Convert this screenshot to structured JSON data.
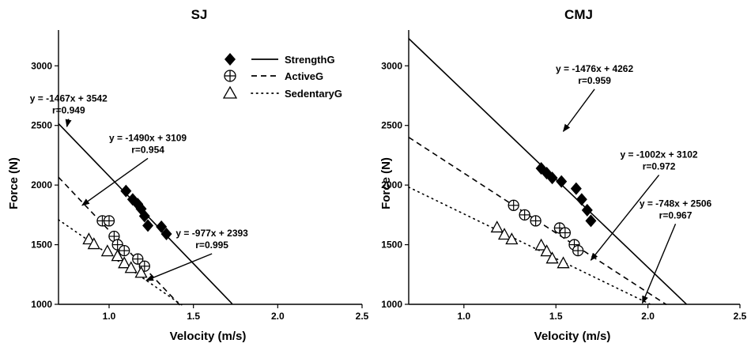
{
  "chart_data": [
    {
      "type": "scatter",
      "title": "SJ",
      "xlabel": "Velocity (m/s)",
      "ylabel": "Force (N)",
      "xlim": [
        0.7,
        2.5
      ],
      "ylim": [
        1000,
        3300
      ],
      "xticks": [
        1.0,
        1.5,
        2.0,
        2.5
      ],
      "xtick_labels": [
        "1.0",
        "1.5",
        "2.0",
        "2.5"
      ],
      "yticks": [
        1000,
        1500,
        2000,
        2500,
        3000
      ],
      "ytick_labels": [
        "1000",
        "1500",
        "2000",
        "2500",
        "3000"
      ],
      "legend_position": "top-right",
      "series": [
        {
          "name": "StrengthG",
          "marker": "diamond",
          "line": "solid",
          "points": [
            [
              1.1,
              1950
            ],
            [
              1.14,
              1880
            ],
            [
              1.17,
              1840
            ],
            [
              1.19,
              1800
            ],
            [
              1.21,
              1740
            ],
            [
              1.23,
              1660
            ],
            [
              1.31,
              1650
            ],
            [
              1.34,
              1590
            ]
          ],
          "fit": {
            "slope": -1467,
            "intercept": 3542,
            "x_range": [
              0.7,
              1.73
            ]
          }
        },
        {
          "name": "ActiveG",
          "marker": "circle-plus",
          "line": "dashed",
          "points": [
            [
              0.96,
              1700
            ],
            [
              1.0,
              1700
            ],
            [
              1.03,
              1570
            ],
            [
              1.05,
              1500
            ],
            [
              1.09,
              1450
            ],
            [
              1.17,
              1380
            ],
            [
              1.21,
              1320
            ]
          ],
          "fit": {
            "slope": -1490,
            "intercept": 3109,
            "x_range": [
              0.7,
              1.42
            ]
          }
        },
        {
          "name": "SedentaryG",
          "marker": "triangle",
          "line": "dotted",
          "points": [
            [
              0.88,
              1540
            ],
            [
              0.91,
              1500
            ],
            [
              0.99,
              1440
            ],
            [
              1.05,
              1400
            ],
            [
              1.09,
              1340
            ],
            [
              1.13,
              1300
            ],
            [
              1.19,
              1260
            ]
          ],
          "fit": {
            "slope": -977,
            "intercept": 2393,
            "x_range": [
              0.7,
              1.43
            ]
          }
        }
      ],
      "annotations": [
        {
          "lines": [
            "y = -1467x + 3542",
            "r=0.949"
          ],
          "text_at": [
            0.76,
            2700
          ],
          "arrow_to": [
            0.75,
            2490
          ]
        },
        {
          "lines": [
            "y = -1490x + 3109",
            "r=0.954"
          ],
          "text_at": [
            1.23,
            2370
          ],
          "arrow_to": [
            0.84,
            1830
          ]
        },
        {
          "lines": [
            "y = -977x + 2393",
            "r=0.995"
          ],
          "text_at": [
            1.61,
            1570
          ],
          "arrow_to": [
            1.22,
            1200
          ]
        }
      ]
    },
    {
      "type": "scatter",
      "title": "CMJ",
      "xlabel": "Velocity (m/s)",
      "ylabel": "Force (N)",
      "xlim": [
        0.7,
        2.5
      ],
      "ylim": [
        1000,
        3300
      ],
      "xticks": [
        1.0,
        1.5,
        2.0,
        2.5
      ],
      "xtick_labels": [
        "1.0",
        "1.5",
        "2.0",
        "2.5"
      ],
      "yticks": [
        1000,
        1500,
        2000,
        2500,
        3000
      ],
      "ytick_labels": [
        "1000",
        "1500",
        "2000",
        "2500",
        "3000"
      ],
      "series": [
        {
          "name": "StrengthG",
          "marker": "diamond",
          "line": "solid",
          "points": [
            [
              1.42,
              2140
            ],
            [
              1.45,
              2100
            ],
            [
              1.48,
              2060
            ],
            [
              1.53,
              2030
            ],
            [
              1.61,
              1970
            ],
            [
              1.64,
              1880
            ],
            [
              1.67,
              1790
            ],
            [
              1.69,
              1700
            ]
          ],
          "fit": {
            "slope": -1476,
            "intercept": 4262,
            "x_range": [
              0.7,
              2.21
            ]
          }
        },
        {
          "name": "ActiveG",
          "marker": "circle-plus",
          "line": "dashed",
          "points": [
            [
              1.27,
              1830
            ],
            [
              1.33,
              1750
            ],
            [
              1.39,
              1700
            ],
            [
              1.52,
              1640
            ],
            [
              1.55,
              1600
            ],
            [
              1.6,
              1500
            ],
            [
              1.62,
              1450
            ]
          ],
          "fit": {
            "slope": -1002,
            "intercept": 3102,
            "x_range": [
              0.7,
              2.1
            ]
          }
        },
        {
          "name": "SedentaryG",
          "marker": "triangle",
          "line": "dotted",
          "points": [
            [
              1.18,
              1640
            ],
            [
              1.22,
              1580
            ],
            [
              1.26,
              1540
            ],
            [
              1.42,
              1490
            ],
            [
              1.45,
              1440
            ],
            [
              1.48,
              1380
            ],
            [
              1.54,
              1340
            ]
          ],
          "fit": {
            "slope": -748,
            "intercept": 2506,
            "x_range": [
              0.7,
              2.01
            ]
          }
        }
      ],
      "annotations": [
        {
          "lines": [
            "y = -1476x + 4262",
            "r=0.959"
          ],
          "text_at": [
            1.71,
            2950
          ],
          "arrow_to": [
            1.54,
            2450
          ]
        },
        {
          "lines": [
            "y = -1002x + 3102",
            "r=0.972"
          ],
          "text_at": [
            2.06,
            2230
          ],
          "arrow_to": [
            1.69,
            1370
          ]
        },
        {
          "lines": [
            "y = -748x + 2506",
            "r=0.967"
          ],
          "text_at": [
            2.15,
            1820
          ],
          "arrow_to": [
            1.97,
            1010
          ]
        }
      ]
    }
  ]
}
